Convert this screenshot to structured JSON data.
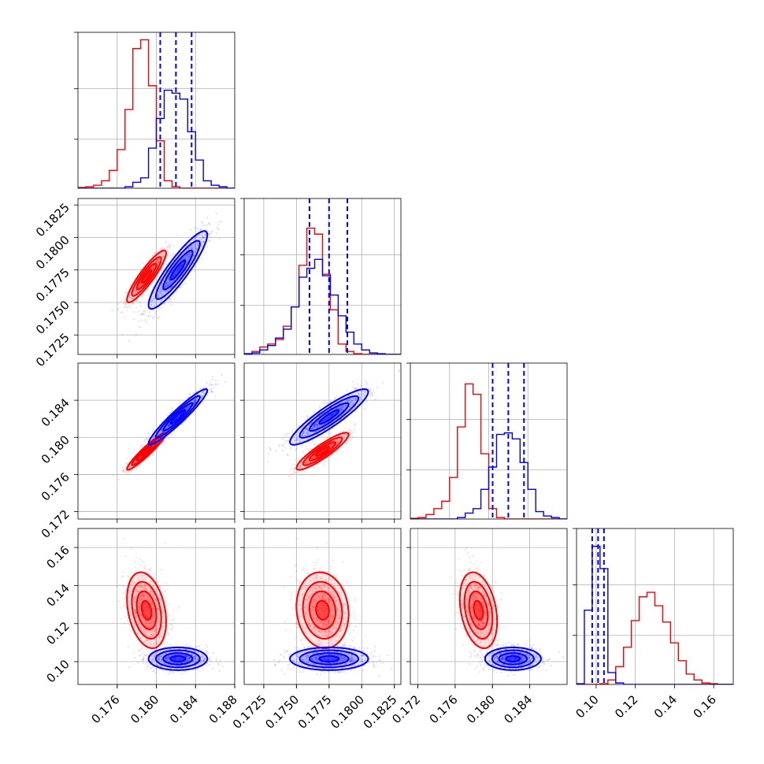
{
  "chart_data": {
    "type": "corner",
    "grid": true,
    "series": [
      {
        "color": "#ff0000",
        "means": [
          0.179,
          0.177,
          0.1785,
          0.127
        ],
        "sigmas": [
          0.001,
          0.001,
          0.001,
          0.01
        ],
        "correlations": {
          "1-0": 0.9,
          "2-0": 0.95,
          "2-1": 0.9,
          "3-0": -0.3,
          "3-1": -0.1,
          "3-2": -0.3
        }
      },
      {
        "color": "#0000ff",
        "means": [
          0.1822,
          0.1775,
          0.1822,
          0.1015
        ],
        "sigmas": [
          0.0015,
          0.0015,
          0.0015,
          0.003
        ],
        "correlations": {
          "1-0": 0.9,
          "2-0": 0.95,
          "2-1": 0.9,
          "3-0": 0.0,
          "3-1": 0.0,
          "3-2": 0.0
        }
      }
    ],
    "quantile_lines": {
      "color": "#0000ff",
      "values": [
        [
          0.1804,
          0.182,
          0.1836
        ],
        [
          0.176,
          0.1775,
          0.1789
        ],
        [
          0.1804,
          0.182,
          0.1836
        ],
        [
          0.098,
          0.101,
          0.104
        ]
      ]
    },
    "histograms": [
      {
        "x_range": [
          0.172,
          0.188
        ],
        "bin_edges": [
          0.172,
          0.1728,
          0.1736,
          0.1744,
          0.1752,
          0.176,
          0.1768,
          0.1776,
          0.1784,
          0.1792,
          0.18,
          0.1808,
          0.1816,
          0.1824,
          0.1832,
          0.184,
          0.1848,
          0.1856,
          0.1864,
          0.1872,
          0.188
        ],
        "red": [
          0.005,
          0.01,
          0.02,
          0.05,
          0.12,
          0.26,
          0.53,
          0.94,
          1.0,
          0.69,
          0.32,
          0.05,
          0.01,
          0,
          0,
          0,
          0,
          0,
          0,
          0
        ],
        "blue": [
          0,
          0,
          0,
          0,
          0,
          0,
          0.01,
          0.04,
          0.07,
          0.27,
          0.47,
          0.66,
          0.64,
          0.6,
          0.38,
          0.19,
          0.05,
          0.02,
          0.01,
          0
        ]
      },
      {
        "x_range": [
          0.171,
          0.183
        ],
        "bin_edges": [
          0.171,
          0.1716,
          0.1722,
          0.1728,
          0.1734,
          0.174,
          0.1746,
          0.1752,
          0.1758,
          0.1764,
          0.177,
          0.1776,
          0.1782,
          0.1788,
          0.1794,
          0.18,
          0.1806,
          0.1812,
          0.1818,
          0.1824,
          0.183
        ],
        "red": [
          0.005,
          0.02,
          0.05,
          0.07,
          0.1,
          0.19,
          0.32,
          0.6,
          0.85,
          0.81,
          0.54,
          0.3,
          0.07,
          0.02,
          0.005,
          0,
          0,
          0,
          0,
          0
        ],
        "blue": [
          0.005,
          0.01,
          0.03,
          0.06,
          0.11,
          0.17,
          0.32,
          0.52,
          0.58,
          0.64,
          0.53,
          0.4,
          0.26,
          0.15,
          0.07,
          0.03,
          0.01,
          0.005,
          0,
          0
        ]
      },
      {
        "x_range": [
          0.172,
          0.188
        ],
        "bin_edges": [
          0.172,
          0.1728,
          0.1736,
          0.1744,
          0.1752,
          0.176,
          0.1768,
          0.1776,
          0.1784,
          0.1792,
          0.18,
          0.1808,
          0.1816,
          0.1824,
          0.1832,
          0.184,
          0.1848,
          0.1856,
          0.1864,
          0.1872,
          0.188
        ],
        "red": [
          0.005,
          0.01,
          0.03,
          0.07,
          0.12,
          0.28,
          0.62,
          0.91,
          0.84,
          0.44,
          0.07,
          0.01,
          0,
          0,
          0,
          0,
          0,
          0,
          0,
          0
        ],
        "blue": [
          0,
          0,
          0,
          0,
          0,
          0,
          0.01,
          0.04,
          0.07,
          0.2,
          0.35,
          0.57,
          0.58,
          0.54,
          0.38,
          0.2,
          0.05,
          0.02,
          0.01,
          0
        ]
      },
      {
        "x_range": [
          0.09,
          0.17
        ],
        "bin_edges": [
          0.09,
          0.094,
          0.098,
          0.102,
          0.106,
          0.11,
          0.114,
          0.118,
          0.122,
          0.126,
          0.13,
          0.134,
          0.138,
          0.142,
          0.146,
          0.15,
          0.154,
          0.158,
          0.162,
          0.166,
          0.17
        ],
        "red": [
          0,
          0,
          0,
          0.005,
          0.03,
          0.12,
          0.25,
          0.43,
          0.59,
          0.62,
          0.53,
          0.42,
          0.28,
          0.16,
          0.07,
          0.03,
          0.01,
          0.005,
          0,
          0
        ],
        "blue": [
          0.005,
          0.5,
          0.93,
          0.78,
          0.08,
          0.01,
          0,
          0,
          0,
          0,
          0,
          0,
          0,
          0,
          0,
          0,
          0,
          0,
          0,
          0
        ]
      }
    ],
    "axes": [
      {
        "range": [
          0.172,
          0.188
        ],
        "ticks": [
          0.176,
          0.18,
          0.184,
          0.188
        ],
        "tick_labels": [
          "0.176",
          "0.180",
          "0.184",
          "0.188"
        ]
      },
      {
        "range": [
          0.171,
          0.183
        ],
        "ticks": [
          0.1725,
          0.175,
          0.1775,
          0.18,
          0.1825
        ],
        "tick_labels": [
          "0.1725",
          "0.1750",
          "0.1775",
          "0.1800",
          "0.1825"
        ]
      },
      {
        "range": [
          0.1712,
          0.188
        ],
        "ticks": [
          0.172,
          0.176,
          0.18,
          0.184
        ],
        "tick_labels": [
          "0.172",
          "0.176",
          "0.180",
          "0.184"
        ]
      },
      {
        "range": [
          0.088,
          0.17
        ],
        "ticks": [
          0.1,
          0.12,
          0.14,
          0.16
        ],
        "tick_labels": [
          "0.10",
          "0.12",
          "0.14",
          "0.16"
        ]
      }
    ],
    "hist_y_ticks": [
      0.33,
      0.67
    ]
  }
}
